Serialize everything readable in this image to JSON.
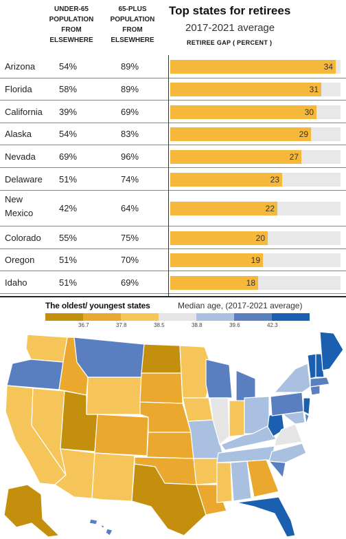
{
  "header": {
    "under65": "UNDER-65 POPULATION FROM ELSEWHERE",
    "plus65": "65-PLUS POPULATION FROM ELSEWHERE",
    "title": "Top states for retirees",
    "subtitle": "2017-2021 average",
    "gap_label": "RETIREE GAP ( PERCENT )"
  },
  "chart_data": [
    {
      "type": "bar",
      "title": "Top states for retirees",
      "subtitle": "2017-2021 average",
      "ylabel": "RETIREE GAP ( PERCENT )",
      "xlim": [
        0,
        35
      ],
      "rows": [
        {
          "state": "Arizona",
          "under65": "54%",
          "plus65": "89%",
          "gap": 34
        },
        {
          "state": "Florida",
          "under65": "58%",
          "plus65": "89%",
          "gap": 31
        },
        {
          "state": "California",
          "under65": "39%",
          "plus65": "69%",
          "gap": 30
        },
        {
          "state": "Alaska",
          "under65": "54%",
          "plus65": "83%",
          "gap": 29
        },
        {
          "state": "Nevada",
          "under65": "69%",
          "plus65": "96%",
          "gap": 27
        },
        {
          "state": "Delaware",
          "under65": "51%",
          "plus65": "74%",
          "gap": 23
        },
        {
          "state": "New Mexico",
          "under65": "42%",
          "plus65": "64%",
          "gap": 22
        },
        {
          "state": "Colorado",
          "under65": "55%",
          "plus65": "75%",
          "gap": 20
        },
        {
          "state": "Oregon",
          "under65": "51%",
          "plus65": "70%",
          "gap": 19
        },
        {
          "state": "Idaho",
          "under65": "51%",
          "plus65": "69%",
          "gap": 18
        }
      ]
    },
    {
      "type": "heatmap",
      "title": "The oldest/ youngest states",
      "subtitle": "Median age, (2017-2021 average)",
      "legend_colors": [
        "#c48f0c",
        "#eaa92e",
        "#f5c55a",
        "#e5e5e5",
        "#a9c0e0",
        "#5a7fc0",
        "#1a5fb0"
      ],
      "legend_ticks": [
        "36.7",
        "37.8",
        "38.5",
        "38.8",
        "39.6",
        "42.3"
      ]
    }
  ]
}
